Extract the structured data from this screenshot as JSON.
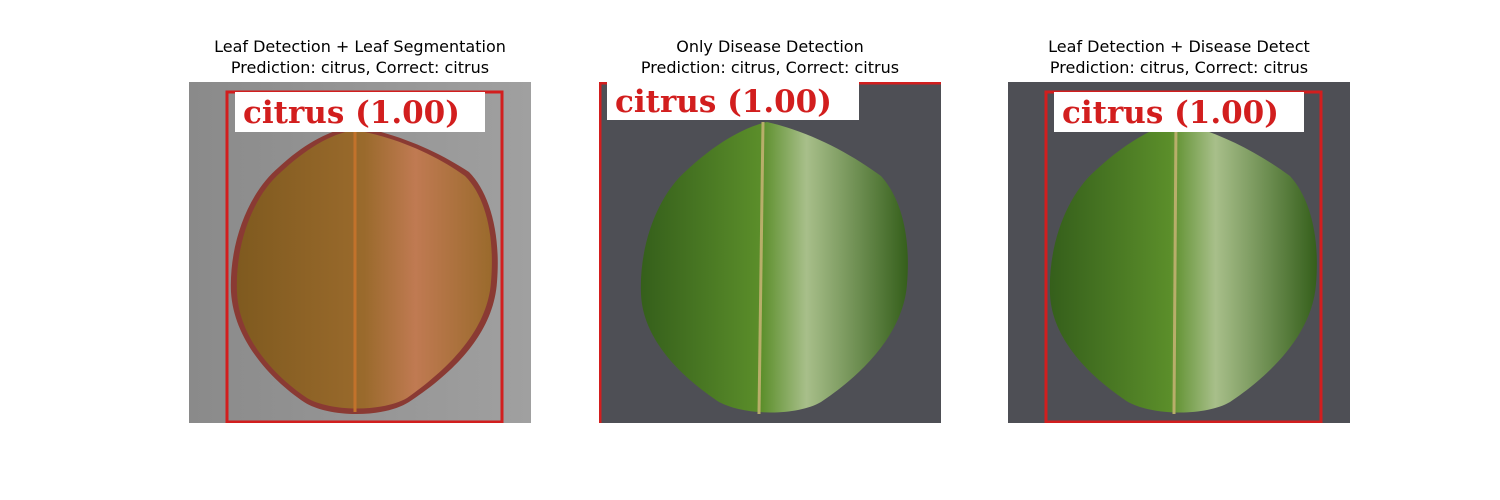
{
  "panels": [
    {
      "title": "Leaf Detection + Leaf Segmentation",
      "subtitle": "Prediction: citrus, Correct: citrus",
      "detection_label": "citrus (1.00)",
      "background_color": "#8d8d8d",
      "leaf_colors": [
        "#7f5a1f",
        "#9a6a2c",
        "#c07a52"
      ],
      "segmentation_color": "#8a3a33",
      "box_color": "#d21e1e"
    },
    {
      "title": "Only Disease Detection",
      "subtitle": "Prediction: citrus, Correct: citrus",
      "detection_label": "citrus (1.00)",
      "background_color": "#4e4f55",
      "leaf_colors": [
        "#355f1b",
        "#5b8e2a",
        "#a8bf8a"
      ],
      "box_color": "#d21e1e"
    },
    {
      "title": "Leaf Detection + Disease Detect",
      "subtitle": "Prediction: citrus, Correct: citrus",
      "detection_label": "citrus (1.00)",
      "background_color": "#4e4f55",
      "leaf_colors": [
        "#355f1b",
        "#5b8e2a",
        "#a8bf8a"
      ],
      "box_color": "#d21e1e"
    }
  ]
}
